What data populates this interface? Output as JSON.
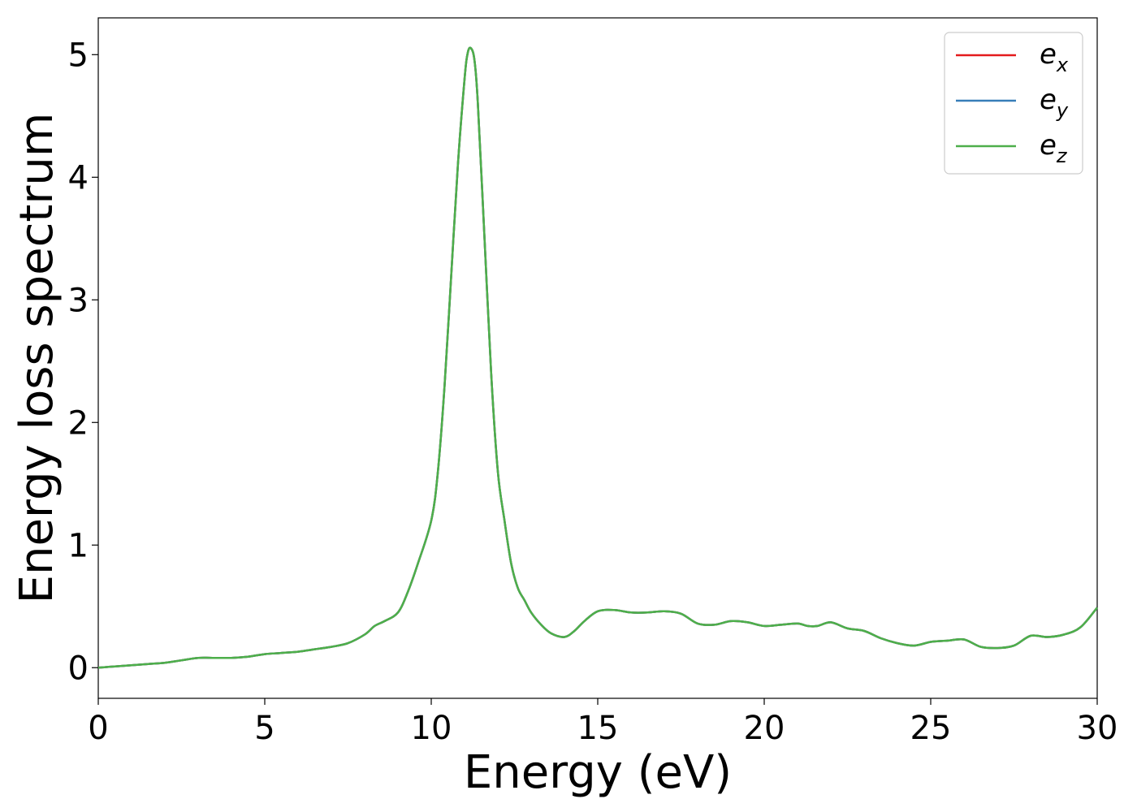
{
  "chart_data": {
    "type": "line",
    "title": "",
    "xlabel": "Energy (eV)",
    "ylabel": "Energy loss spectrum",
    "xlim": [
      0,
      30
    ],
    "ylim": [
      -0.25,
      5.3
    ],
    "xticks": [
      0,
      5,
      10,
      15,
      20,
      25,
      30
    ],
    "yticks": [
      0,
      1,
      2,
      3,
      4,
      5
    ],
    "grid": false,
    "legend_position": "top-right",
    "x": [
      0,
      0.5,
      1,
      1.5,
      2,
      2.5,
      3,
      3.5,
      4,
      4.5,
      5,
      5.5,
      6,
      6.5,
      7,
      7.5,
      8,
      8.3,
      8.6,
      9,
      9.3,
      9.6,
      10,
      10.2,
      10.4,
      10.6,
      10.8,
      11,
      11.1,
      11.2,
      11.3,
      11.4,
      11.6,
      11.8,
      12,
      12.2,
      12.4,
      12.6,
      12.8,
      13,
      13.3,
      13.6,
      14,
      14.3,
      14.6,
      15,
      15.5,
      16,
      16.5,
      17,
      17.5,
      18,
      18.5,
      19,
      19.5,
      20,
      20.5,
      21,
      21.3,
      21.6,
      22,
      22.5,
      23,
      23.5,
      24,
      24.5,
      25,
      25.5,
      26,
      26.5,
      27,
      27.5,
      28,
      28.5,
      29,
      29.5,
      30
    ],
    "series": [
      {
        "name": "e",
        "subscript": "x",
        "color": "#e41a1c",
        "values": [
          0.0,
          0.01,
          0.02,
          0.03,
          0.04,
          0.06,
          0.08,
          0.08,
          0.08,
          0.09,
          0.11,
          0.12,
          0.13,
          0.15,
          0.17,
          0.2,
          0.27,
          0.34,
          0.38,
          0.45,
          0.62,
          0.85,
          1.2,
          1.6,
          2.3,
          3.2,
          4.1,
          4.8,
          5.02,
          5.05,
          4.95,
          4.6,
          3.5,
          2.4,
          1.6,
          1.2,
          0.85,
          0.65,
          0.55,
          0.45,
          0.35,
          0.28,
          0.25,
          0.3,
          0.38,
          0.46,
          0.47,
          0.45,
          0.45,
          0.46,
          0.44,
          0.36,
          0.35,
          0.38,
          0.37,
          0.34,
          0.35,
          0.36,
          0.34,
          0.34,
          0.37,
          0.32,
          0.3,
          0.24,
          0.2,
          0.18,
          0.21,
          0.22,
          0.23,
          0.17,
          0.16,
          0.18,
          0.26,
          0.25,
          0.27,
          0.33,
          0.49
        ]
      },
      {
        "name": "e",
        "subscript": "y",
        "color": "#377eb8",
        "values": [
          0.0,
          0.01,
          0.02,
          0.03,
          0.04,
          0.06,
          0.08,
          0.08,
          0.08,
          0.09,
          0.11,
          0.12,
          0.13,
          0.15,
          0.17,
          0.2,
          0.27,
          0.34,
          0.38,
          0.45,
          0.62,
          0.85,
          1.2,
          1.6,
          2.3,
          3.2,
          4.1,
          4.8,
          5.02,
          5.05,
          4.95,
          4.6,
          3.5,
          2.4,
          1.6,
          1.2,
          0.85,
          0.65,
          0.55,
          0.45,
          0.35,
          0.28,
          0.25,
          0.3,
          0.38,
          0.46,
          0.47,
          0.45,
          0.45,
          0.46,
          0.44,
          0.36,
          0.35,
          0.38,
          0.37,
          0.34,
          0.35,
          0.36,
          0.34,
          0.34,
          0.37,
          0.32,
          0.3,
          0.24,
          0.2,
          0.18,
          0.21,
          0.22,
          0.23,
          0.17,
          0.16,
          0.18,
          0.26,
          0.25,
          0.27,
          0.33,
          0.49
        ]
      },
      {
        "name": "e",
        "subscript": "z",
        "color": "#4daf4a",
        "values": [
          0.0,
          0.01,
          0.02,
          0.03,
          0.04,
          0.06,
          0.08,
          0.08,
          0.08,
          0.09,
          0.11,
          0.12,
          0.13,
          0.15,
          0.17,
          0.2,
          0.27,
          0.34,
          0.38,
          0.45,
          0.62,
          0.85,
          1.2,
          1.6,
          2.3,
          3.2,
          4.1,
          4.8,
          5.02,
          5.05,
          4.95,
          4.6,
          3.5,
          2.4,
          1.6,
          1.2,
          0.85,
          0.65,
          0.55,
          0.45,
          0.35,
          0.28,
          0.25,
          0.3,
          0.38,
          0.46,
          0.47,
          0.45,
          0.45,
          0.46,
          0.44,
          0.36,
          0.35,
          0.38,
          0.37,
          0.34,
          0.35,
          0.36,
          0.34,
          0.34,
          0.37,
          0.32,
          0.3,
          0.24,
          0.2,
          0.18,
          0.21,
          0.22,
          0.23,
          0.17,
          0.16,
          0.18,
          0.26,
          0.25,
          0.27,
          0.33,
          0.49
        ]
      }
    ]
  }
}
